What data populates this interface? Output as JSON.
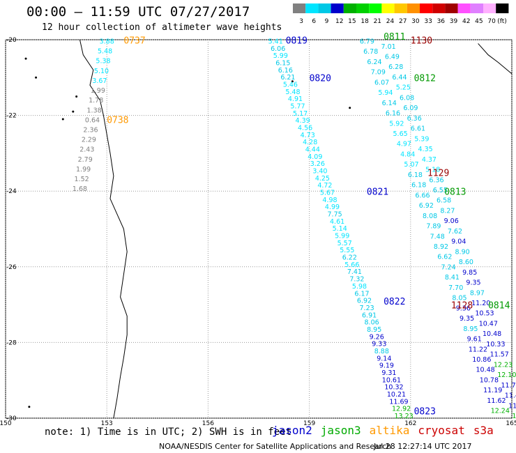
{
  "header": {
    "title": "00:00 – 11:59 UTC 07/27/2017",
    "subtitle": "12 hour collection of altimeter wave heights"
  },
  "legend": {
    "unit": "(ft)",
    "bins": [
      {
        "label": "3",
        "color": "#808080"
      },
      {
        "label": "6",
        "color": "#00e5ff"
      },
      {
        "label": "9",
        "color": "#00c8e6"
      },
      {
        "label": "12",
        "color": "#0000cc"
      },
      {
        "label": "15",
        "color": "#00b000"
      },
      {
        "label": "18",
        "color": "#00d000"
      },
      {
        "label": "21",
        "color": "#00ff00"
      },
      {
        "label": "24",
        "color": "#ffff00"
      },
      {
        "label": "27",
        "color": "#ffc800"
      },
      {
        "label": "30",
        "color": "#ff9000"
      },
      {
        "label": "33",
        "color": "#ff0000"
      },
      {
        "label": "36",
        "color": "#d00000"
      },
      {
        "label": "39",
        "color": "#a00000"
      },
      {
        "label": "42",
        "color": "#ff50ff"
      },
      {
        "label": "45",
        "color": "#e080ff"
      },
      {
        "label": "70",
        "color": "#ffb0ff"
      },
      {
        "label": "",
        "color": "#000000"
      }
    ]
  },
  "axes": {
    "lon_ticks": [
      "150",
      "153",
      "156",
      "159",
      "162",
      "165"
    ],
    "lat_ticks": [
      "-20",
      "-22",
      "-24",
      "-26",
      "-28",
      "-30"
    ],
    "lon_min": 150,
    "lon_max": 165,
    "lat_min": -30,
    "lat_max": -20
  },
  "tracks": [
    {
      "name": "altika",
      "color": "#808080",
      "values": [
        "3.88",
        "5.48",
        "5.38",
        "5.10",
        "3.67",
        "1.99",
        "1.78",
        "1.38",
        "0.64",
        "2.36",
        "2.29",
        "2.43",
        "2.79",
        "1.99",
        "1.52",
        "1.68"
      ]
    },
    {
      "name": "jason2-0819",
      "color": "#00e5ff",
      "values": [
        "5.41",
        "6.06",
        "5.99",
        "6.15",
        "6.16",
        "6.21",
        "5.46",
        "5.48",
        "4.91",
        "5.77",
        "5.17",
        "4.39",
        "4.56",
        "4.73",
        "4.28",
        "4.44",
        "4.09",
        "3.26",
        "3.40",
        "4.25",
        "4.72",
        "5.67",
        "4.98",
        "4.99",
        "7.75",
        "4.61",
        "5.14",
        "5.99",
        "5.57",
        "5.55",
        "6.22",
        "5.66",
        "7.41",
        "7.32",
        "5.98",
        "6.17",
        "6.92",
        "7.23",
        "6.91",
        "8.06",
        "8.95",
        "9.26",
        "9.33",
        "8.88",
        "9.14",
        "9.19",
        "9.31",
        "10.61",
        "10.32",
        "10.21",
        "11.69",
        "12.92",
        "13.23"
      ]
    },
    {
      "name": "jason3-0811",
      "color": "#00e5ff",
      "values": [
        "6.79",
        "7.01",
        "6.78",
        "6.49",
        "6.24",
        "6.28",
        "7.09",
        "6.44",
        "6.07",
        "5.25",
        "5.94",
        "6.08",
        "6.14",
        "6.09",
        "6.16",
        "6.36",
        "5.92",
        "6.61",
        "5.65",
        "5.39",
        "4.97",
        "4.35",
        "4.84",
        "4.37",
        "5.07",
        "5.18",
        "6.18",
        "6.36",
        "6.18",
        "6.55",
        "6.66",
        "6.58",
        "6.92",
        "8.27",
        "8.08",
        "9.06",
        "7.89",
        "7.62",
        "7.48",
        "9.04",
        "8.92",
        "8.90",
        "6.62",
        "8.60",
        "7.24",
        "9.85",
        "8.41",
        "9.35",
        "7.70",
        "8.97",
        "8.05",
        "11.20",
        "9.36",
        "10.53",
        "9.35",
        "10.47",
        "8.95",
        "10.48",
        "9.61",
        "10.33",
        "11.22",
        "11.57",
        "10.86",
        "12.23",
        "10.48",
        "12.10",
        "10.78",
        "11.75",
        "11.19",
        "11.42",
        "11.62",
        "11.58",
        "12.24",
        "12.08"
      ]
    }
  ],
  "labels": [
    {
      "text": "0737",
      "color": "#ff9900",
      "lon": 153.5,
      "lat": -20.1
    },
    {
      "text": "0738",
      "color": "#ff9900",
      "lon": 153.0,
      "lat": -22.2
    },
    {
      "text": "0819",
      "color": "#0000cc",
      "lon": 158.3,
      "lat": -20.1
    },
    {
      "text": "0820",
      "color": "#0000cc",
      "lon": 159.0,
      "lat": -21.1
    },
    {
      "text": "0821",
      "color": "#0000cc",
      "lon": 160.7,
      "lat": -24.1
    },
    {
      "text": "0822",
      "color": "#0000cc",
      "lon": 161.2,
      "lat": -27.0
    },
    {
      "text": "0823",
      "color": "#0000cc",
      "lon": 162.1,
      "lat": -29.9
    },
    {
      "text": "0811",
      "color": "#009900",
      "lon": 161.2,
      "lat": -20.0
    },
    {
      "text": "0812",
      "color": "#009900",
      "lon": 162.1,
      "lat": -21.1
    },
    {
      "text": "0813",
      "color": "#009900",
      "lon": 163.0,
      "lat": -24.1
    },
    {
      "text": "0814",
      "color": "#009900",
      "lon": 164.3,
      "lat": -27.1
    },
    {
      "text": "1130",
      "color": "#990000",
      "lon": 162.0,
      "lat": -20.1
    },
    {
      "text": "1129",
      "color": "#990000",
      "lon": 162.5,
      "lat": -23.6
    },
    {
      "text": "1128",
      "color": "#990000",
      "lon": 163.2,
      "lat": -27.1
    }
  ],
  "footer": {
    "note": "note: 1) Time is in UTC; 2) SWH is in feet",
    "satellites": [
      {
        "name": "jason2",
        "color": "#0000cc"
      },
      {
        "name": "jason3",
        "color": "#00aa00"
      },
      {
        "name": "altika",
        "color": "#ff9900"
      },
      {
        "name": "cryosat",
        "color": "#cc0000"
      },
      {
        "name": "s3a",
        "color": "#cc0000"
      }
    ],
    "credit": "NOAA/NESDIS Center for Satellite Applications and Research",
    "generated": "Jul 28 12:27:14 UTC 2017"
  }
}
